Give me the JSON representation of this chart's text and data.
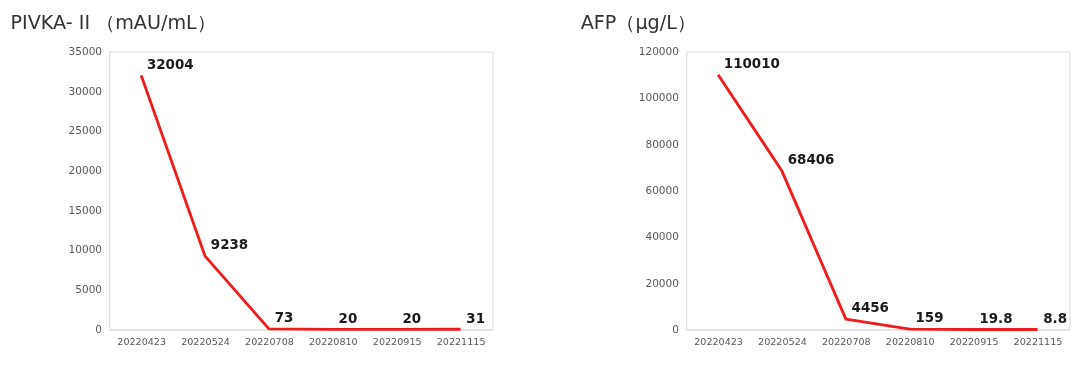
{
  "chart_data": [
    {
      "type": "line",
      "title": "PIVKA- II （mAU/mL）",
      "categories": [
        "20220423",
        "20220524",
        "20220708",
        "20220810",
        "20220915",
        "20221115"
      ],
      "series": [
        {
          "color": "#ee1c1c",
          "values": [
            32004,
            9238,
            73,
            20,
            20,
            31
          ]
        }
      ],
      "ylim": [
        0,
        35000
      ],
      "yticks": [
        0,
        5000,
        10000,
        15000,
        20000,
        25000,
        30000,
        35000
      ],
      "data_labels": true,
      "line_style": "solid"
    },
    {
      "type": "line",
      "title": "AFP（μg/L）",
      "categories": [
        "20220423",
        "20220524",
        "20220708",
        "20220810",
        "20220915",
        "20221115"
      ],
      "series": [
        {
          "color": "#ee1c1c",
          "values": [
            110010,
            68406,
            4456,
            159,
            19.8,
            8.8
          ]
        }
      ],
      "ylim": [
        0,
        120000
      ],
      "yticks": [
        0,
        20000,
        40000,
        60000,
        80000,
        100000,
        120000
      ],
      "data_labels": true,
      "line_style": "solid"
    }
  ]
}
